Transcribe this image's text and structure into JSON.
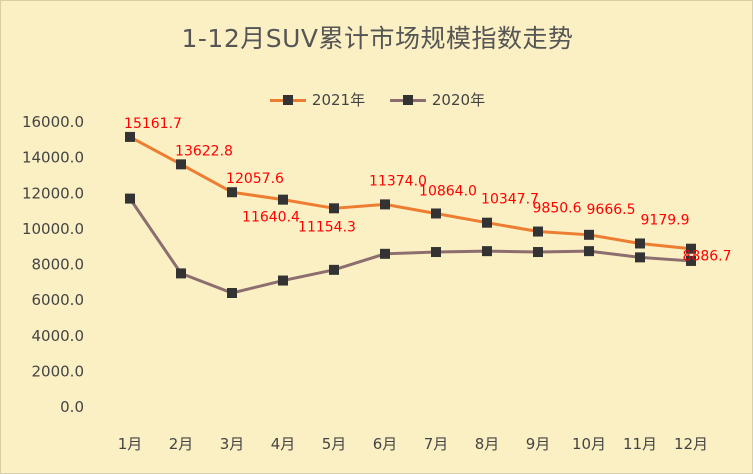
{
  "chart_data": {
    "type": "line",
    "title": "1-12月SUV累计市场规模指数走势",
    "xlabel": "",
    "ylabel": "",
    "categories": [
      "1月",
      "2月",
      "3月",
      "4月",
      "5月",
      "6月",
      "7月",
      "8月",
      "9月",
      "10月",
      "11月",
      "12月"
    ],
    "ylim": [
      0,
      16000
    ],
    "yticks": [
      "0.0",
      "2000.0",
      "4000.0",
      "6000.0",
      "8000.0",
      "10000.0",
      "12000.0",
      "14000.0",
      "16000.0"
    ],
    "grid": false,
    "legend_position": "top",
    "series": [
      {
        "name": "2021年",
        "color": "#ED7D31",
        "values": [
          15161.7,
          13622.8,
          12057.6,
          11640.4,
          11154.3,
          11374.0,
          10864.0,
          10347.7,
          9850.6,
          9666.5,
          9179.9,
          8886.7
        ],
        "labels": [
          "15161.7",
          "13622.8",
          "12057.6",
          "11640.4",
          "11154.3",
          "11374.0",
          "10864.0",
          "10347.7",
          "9850.6",
          "9666.5",
          "9179.9",
          "8886.7"
        ],
        "label_color": "#FF0000"
      },
      {
        "name": "2020年",
        "color": "#8C6E6E",
        "values": [
          11700,
          7500,
          6400,
          7100,
          7700,
          8600,
          8700,
          8750,
          8700,
          8750,
          8400,
          8200
        ]
      }
    ]
  }
}
